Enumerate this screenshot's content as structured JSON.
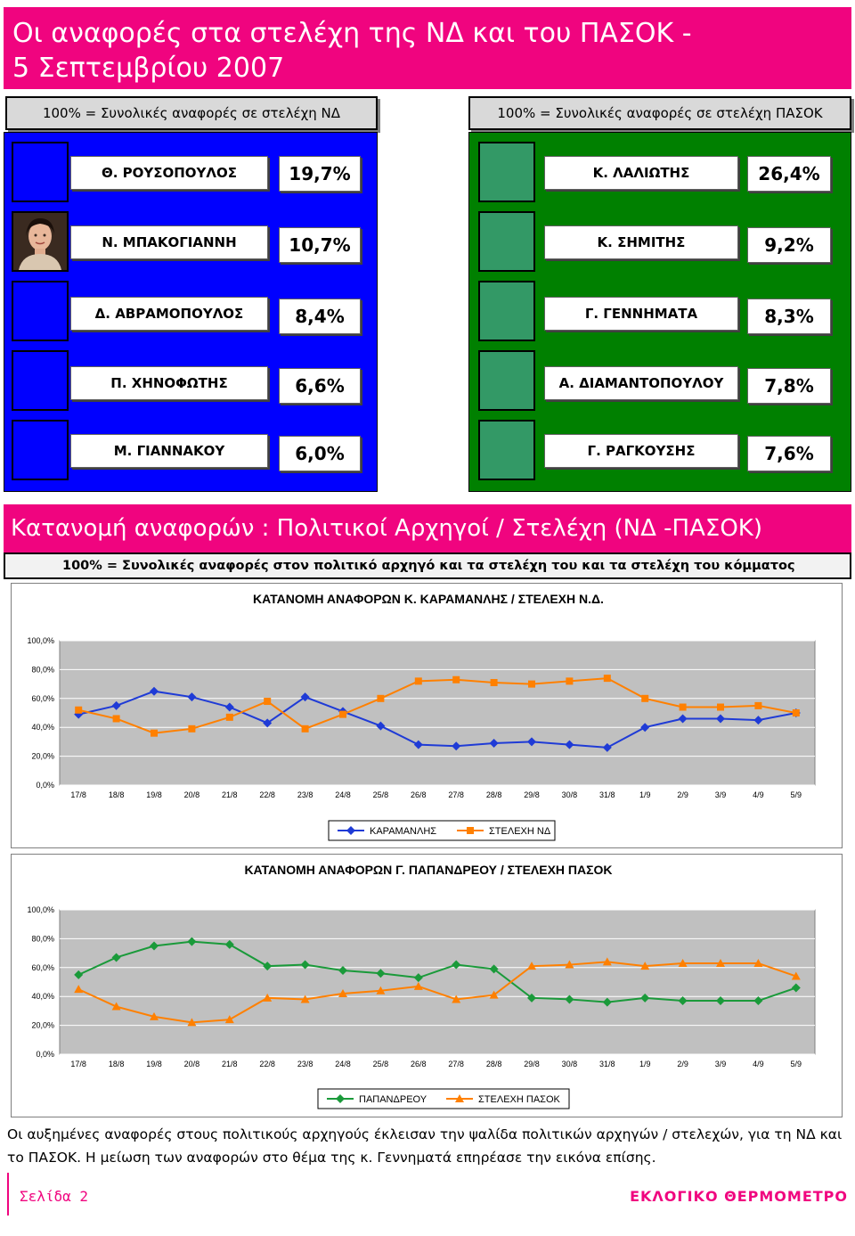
{
  "title": {
    "line1": "Οι αναφορές στα στελέχη της ΝΔ και του ΠΑΣΟΚ -",
    "line2": "5 Σεπτεμβρίου 2007"
  },
  "nd_header": "100% = Συνολικές αναφορές σε στελέχη ΝΔ",
  "pasok_header": "100% = Συνολικές αναφορές σε στελέχη ΠΑΣΟΚ",
  "nd_rows": [
    {
      "name": "Θ. ΡΟΥΣΟΠΟΥΛΟΣ",
      "pct": "19,7%"
    },
    {
      "name": "Ν. ΜΠΑΚΟΓΙΑΝΝΗ",
      "pct": "10,7%"
    },
    {
      "name": "Δ. ΑΒΡΑΜΟΠΟΥΛΟΣ",
      "pct": "8,4%"
    },
    {
      "name": "Π. ΧΗΝΟΦΩΤΗΣ",
      "pct": "6,6%"
    },
    {
      "name": "Μ. ΓΙΑΝΝΑΚΟΥ",
      "pct": "6,0%"
    }
  ],
  "pasok_rows": [
    {
      "name": "Κ. ΛΑΛΙΩΤΗΣ",
      "pct": "26,4%"
    },
    {
      "name": "Κ. ΣΗΜΙΤΗΣ",
      "pct": "9,2%"
    },
    {
      "name": "Γ. ΓΕΝΝΗΜΑΤΑ",
      "pct": "8,3%"
    },
    {
      "name": "Α. ΔΙΑΜΑΝΤΟΠΟΥΛΟΥ",
      "pct": "7,8%"
    },
    {
      "name": "Γ. ΡΑΓΚΟΥΣΗΣ",
      "pct": "7,6%"
    }
  ],
  "section": {
    "title": "Κατανομή αναφορών : Πολιτικοί Αρχηγοί / Στελέχη (ΝΔ -ΠΑΣΟΚ)",
    "subtitle": "100% = Συνολικές αναφορές στον πολιτικό αρχηγό και τα στελέχη του και τα στελέχη του κόμματος"
  },
  "colors": {
    "magenta": "#f0047f",
    "nd_blue": "#0000ff",
    "pasok_green": "#008000",
    "series_blue": "#1f3bd6",
    "series_orange": "#ff8000",
    "series_green": "#1a9a3a"
  },
  "chart_data": [
    {
      "type": "line",
      "title": "ΚΑΤΑΝΟΜΗ ΑΝΑΦΟΡΩΝ Κ. ΚΑΡΑΜΑΝΛΗΣ / ΣΤΕΛΕΧΗ Ν.Δ.",
      "categories": [
        "17/8",
        "18/8",
        "19/8",
        "20/8",
        "21/8",
        "22/8",
        "23/8",
        "24/8",
        "25/8",
        "26/8",
        "27/8",
        "28/8",
        "29/8",
        "30/8",
        "31/8",
        "1/9",
        "2/9",
        "3/9",
        "4/9",
        "5/9"
      ],
      "yticks": [
        "0,0%",
        "20,0%",
        "40,0%",
        "60,0%",
        "80,0%",
        "100,0%"
      ],
      "ylim": [
        0,
        100
      ],
      "grid": true,
      "legend": "bottom",
      "series": [
        {
          "name": "ΚΑΡΑΜΑΝΛΗΣ",
          "marker": "diamond",
          "color": "#1f3bd6",
          "values": [
            49,
            55,
            65,
            61,
            54,
            43,
            61,
            51,
            41,
            28,
            27,
            29,
            30,
            28,
            26,
            40,
            46,
            46,
            45,
            50
          ]
        },
        {
          "name": "ΣΤΕΛΕΧΗ ΝΔ",
          "marker": "square",
          "color": "#ff8000",
          "values": [
            52,
            46,
            36,
            39,
            47,
            58,
            39,
            49,
            60,
            72,
            73,
            71,
            70,
            72,
            74,
            60,
            54,
            54,
            55,
            50
          ]
        }
      ]
    },
    {
      "type": "line",
      "title": "ΚΑΤΑΝΟΜΗ ΑΝΑΦΟΡΩΝ Γ. ΠΑΠΑΝΔΡΕΟΥ / ΣΤΕΛΕΧΗ ΠΑΣΟΚ",
      "categories": [
        "17/8",
        "18/8",
        "19/8",
        "20/8",
        "21/8",
        "22/8",
        "23/8",
        "24/8",
        "25/8",
        "26/8",
        "27/8",
        "28/8",
        "29/8",
        "30/8",
        "31/8",
        "1/9",
        "2/9",
        "3/9",
        "4/9",
        "5/9"
      ],
      "yticks": [
        "0,0%",
        "20,0%",
        "40,0%",
        "60,0%",
        "80,0%",
        "100,0%"
      ],
      "ylim": [
        0,
        100
      ],
      "grid": true,
      "legend": "bottom",
      "series": [
        {
          "name": "ΠΑΠΑΝΔΡΕΟΥ",
          "marker": "diamond",
          "color": "#1a9a3a",
          "values": [
            55,
            67,
            75,
            78,
            76,
            61,
            62,
            58,
            56,
            53,
            62,
            59,
            39,
            38,
            36,
            39,
            37,
            37,
            37,
            46
          ]
        },
        {
          "name": "ΣΤΕΛΕΧΗ ΠΑΣΟΚ",
          "marker": "triangle",
          "color": "#ff8000",
          "values": [
            45,
            33,
            26,
            22,
            24,
            39,
            38,
            42,
            44,
            47,
            38,
            41,
            61,
            62,
            64,
            61,
            63,
            63,
            63,
            54
          ]
        }
      ]
    }
  ],
  "footer": {
    "paragraph": "Οι αυξημένες αναφορές στους πολιτικούς αρχηγούς έκλεισαν την ψαλίδα πολιτικών αρχηγών / στελεχών, για τη ΝΔ και το ΠΑΣΟΚ. Η μείωση των αναφορών στο θέμα της κ. Γεννηματά επηρέασε την εικόνα επίσης.",
    "page": "Σελίδα 2",
    "brand": "ΕΚΛΟΓΙΚΟ ΘΕΡΜΟΜΕΤΡΟ"
  }
}
